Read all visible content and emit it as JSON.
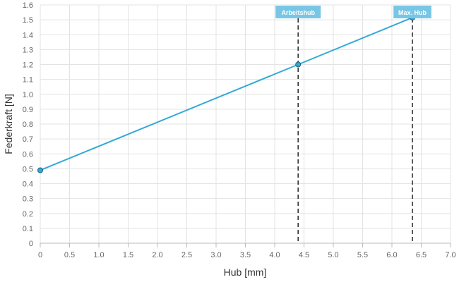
{
  "chart_data": {
    "type": "line",
    "xlabel": "Hub [mm]",
    "ylabel": "Federkraft [N]",
    "xlim": [
      0,
      7.0
    ],
    "ylim": [
      0,
      1.6
    ],
    "x_ticks": [
      "0",
      "0.5",
      "1.0",
      "1.5",
      "2.0",
      "2.5",
      "3.0",
      "3.5",
      "4.0",
      "4.5",
      "5.0",
      "5.5",
      "6.0",
      "6.5",
      "7.0"
    ],
    "y_ticks": [
      "0",
      "0.1",
      "0.2",
      "0.3",
      "0.4",
      "0.5",
      "0.6",
      "0.7",
      "0.8",
      "0.9",
      "1.0",
      "1.1",
      "1.2",
      "1.3",
      "1.4",
      "1.5",
      "1.6"
    ],
    "grid": true,
    "series": [
      {
        "x": [
          0,
          4.4,
          6.35
        ],
        "y": [
          0.49,
          1.2,
          1.515
        ],
        "color": "#33aad6"
      }
    ],
    "markers": [
      {
        "label": "Arbeitshub",
        "x": 4.4
      },
      {
        "label": "Max. Hub",
        "x": 6.35
      }
    ],
    "marker_color": "#78c6e6"
  }
}
